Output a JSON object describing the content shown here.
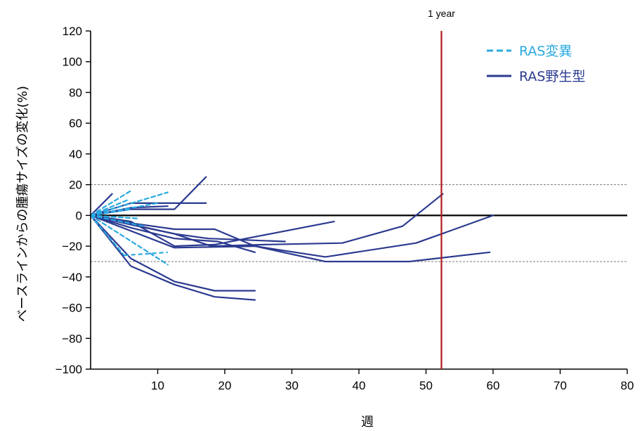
{
  "chart_data": {
    "type": "line",
    "xlabel": "週",
    "ylabel": "ベースラインからの腫瘍サイズの変化(%)",
    "xlim": [
      0,
      80
    ],
    "ylim": [
      -100,
      120
    ],
    "xticks": [
      10,
      20,
      30,
      40,
      50,
      60,
      70,
      80
    ],
    "yticks": [
      120,
      100,
      80,
      60,
      40,
      20,
      0,
      -20,
      -40,
      -60,
      -80,
      -100
    ],
    "reference_lines": [
      {
        "axis": "y",
        "value": 20,
        "style": "dashed",
        "color": "#7a7a7a"
      },
      {
        "axis": "y",
        "value": -30,
        "style": "dashed",
        "color": "#7a7a7a"
      },
      {
        "axis": "y",
        "value": 0,
        "style": "solid",
        "color": "#000000"
      }
    ],
    "marker_line": {
      "x": 52.3,
      "label": "1 year",
      "color": "#b31b1b"
    },
    "legend": {
      "position": "top-right",
      "entries": [
        {
          "label": "RAS変異",
          "style": "dashed",
          "color": "#29a9e0"
        },
        {
          "label": "RAS野生型",
          "style": "solid",
          "color": "#2b3a90"
        }
      ]
    },
    "colors": {
      "mutant": "#29a9e0",
      "wildtype": "#2b3a90",
      "zero_line": "#000000",
      "year_line": "#b31b1b"
    },
    "series": [
      {
        "group": "RAS変異",
        "x": [
          0,
          6
        ],
        "y": [
          0,
          16
        ]
      },
      {
        "group": "RAS変異",
        "x": [
          0,
          5.5
        ],
        "y": [
          0,
          10
        ]
      },
      {
        "group": "RAS変異",
        "x": [
          0,
          6
        ],
        "y": [
          0,
          4
        ]
      },
      {
        "group": "RAS変異",
        "x": [
          0,
          7
        ],
        "y": [
          0,
          -2
        ]
      },
      {
        "group": "RAS変異",
        "x": [
          0,
          11.5
        ],
        "y": [
          0,
          15
        ]
      },
      {
        "group": "RAS変異",
        "x": [
          0,
          10
        ],
        "y": [
          0,
          8
        ]
      },
      {
        "group": "RAS変異",
        "x": [
          0,
          8
        ],
        "y": [
          0,
          -7
        ]
      },
      {
        "group": "RAS変異",
        "x": [
          0,
          5
        ],
        "y": [
          0,
          -26
        ],
        "x2": 11.5,
        "y2": -24
      },
      {
        "group": "RAS変異",
        "x": [
          0,
          11.5
        ],
        "y": [
          0,
          -32
        ]
      },
      {
        "group": "RAS野生型",
        "x": [
          0,
          3.2
        ],
        "y": [
          0,
          14
        ]
      },
      {
        "group": "RAS野生型",
        "x": [
          0,
          6,
          12.5,
          17.2
        ],
        "y": [
          0,
          4,
          4,
          25
        ]
      },
      {
        "group": "RAS野生型",
        "x": [
          0,
          6,
          17.2
        ],
        "y": [
          0,
          8,
          8
        ]
      },
      {
        "group": "RAS野生型",
        "x": [
          0,
          6,
          11.5
        ],
        "y": [
          0,
          5,
          6
        ]
      },
      {
        "group": "RAS野生型",
        "x": [
          0,
          6,
          12.5,
          18.5,
          36.3
        ],
        "y": [
          0,
          -4,
          -20,
          -19,
          -4
        ]
      },
      {
        "group": "RAS野生型",
        "x": [
          0,
          6,
          12.5,
          19,
          24.5
        ],
        "y": [
          0,
          -8,
          -15,
          -17,
          -24
        ]
      },
      {
        "group": "RAS野生型",
        "x": [
          0,
          6,
          12.5,
          17.5,
          29
        ],
        "y": [
          0,
          -6,
          -12,
          -15,
          -17
        ]
      },
      {
        "group": "RAS野生型",
        "x": [
          0,
          12.5,
          18,
          26,
          37.5,
          46.5,
          52.5
        ],
        "y": [
          0,
          -12,
          -20,
          -19,
          -18,
          -7,
          14
        ]
      },
      {
        "group": "RAS野生型",
        "x": [
          0,
          6,
          12.5,
          18.5,
          24.5,
          35,
          48.5,
          60
        ],
        "y": [
          0,
          -5,
          -9,
          -9,
          -20,
          -27,
          -18,
          0
        ]
      },
      {
        "group": "RAS野生型",
        "x": [
          0,
          12.5,
          24.5,
          35,
          47.5,
          59.5
        ],
        "y": [
          0,
          -21,
          -20,
          -30,
          -30,
          -24
        ]
      },
      {
        "group": "RAS野生型",
        "x": [
          0,
          6,
          12.5,
          18.5,
          24.5
        ],
        "y": [
          0,
          -33,
          -45,
          -53,
          -55
        ]
      },
      {
        "group": "RAS野生型",
        "x": [
          0,
          6,
          12.5,
          18.5,
          24.5
        ],
        "y": [
          0,
          -28,
          -43,
          -49,
          -49
        ]
      }
    ]
  }
}
